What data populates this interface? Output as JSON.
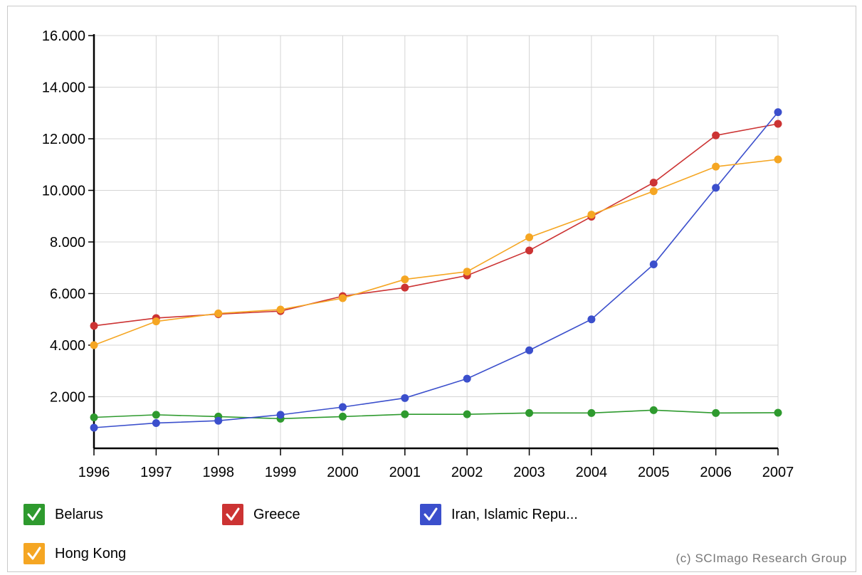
{
  "chart_data": {
    "type": "line",
    "x": [
      "1996",
      "1997",
      "1998",
      "1999",
      "2000",
      "2001",
      "2002",
      "2003",
      "2004",
      "2005",
      "2006",
      "2007"
    ],
    "ylim": [
      0,
      16000
    ],
    "yticks": [
      2000,
      4000,
      6000,
      8000,
      10000,
      12000,
      14000,
      16000
    ],
    "ytick_labels": [
      "2.000",
      "4.000",
      "6.000",
      "8.000",
      "10.000",
      "12.000",
      "14.000",
      "16.000"
    ],
    "grid": true,
    "legend_position": "bottom",
    "series": [
      {
        "name": "Belarus",
        "color": "#2e9a2e",
        "values": [
          1200,
          1300,
          1230,
          1150,
          1230,
          1320,
          1320,
          1370,
          1370,
          1480,
          1370,
          1380
        ]
      },
      {
        "name": "Greece",
        "color": "#cc3333",
        "values": [
          4750,
          5050,
          5200,
          5320,
          5900,
          6230,
          6700,
          7670,
          8980,
          10300,
          12130,
          12580
        ]
      },
      {
        "name": "Iran, Islamic Repu...",
        "color": "#3b4fcc",
        "values": [
          800,
          980,
          1070,
          1300,
          1600,
          1950,
          2700,
          3800,
          5000,
          7130,
          10100,
          13030
        ]
      },
      {
        "name": "Hong Kong",
        "color": "#f5a623",
        "values": [
          4000,
          4920,
          5230,
          5380,
          5820,
          6550,
          6850,
          8180,
          9060,
          9970,
          10920,
          11200
        ]
      }
    ]
  },
  "footer": {
    "copyright": "(c) SCImago Research Group"
  }
}
